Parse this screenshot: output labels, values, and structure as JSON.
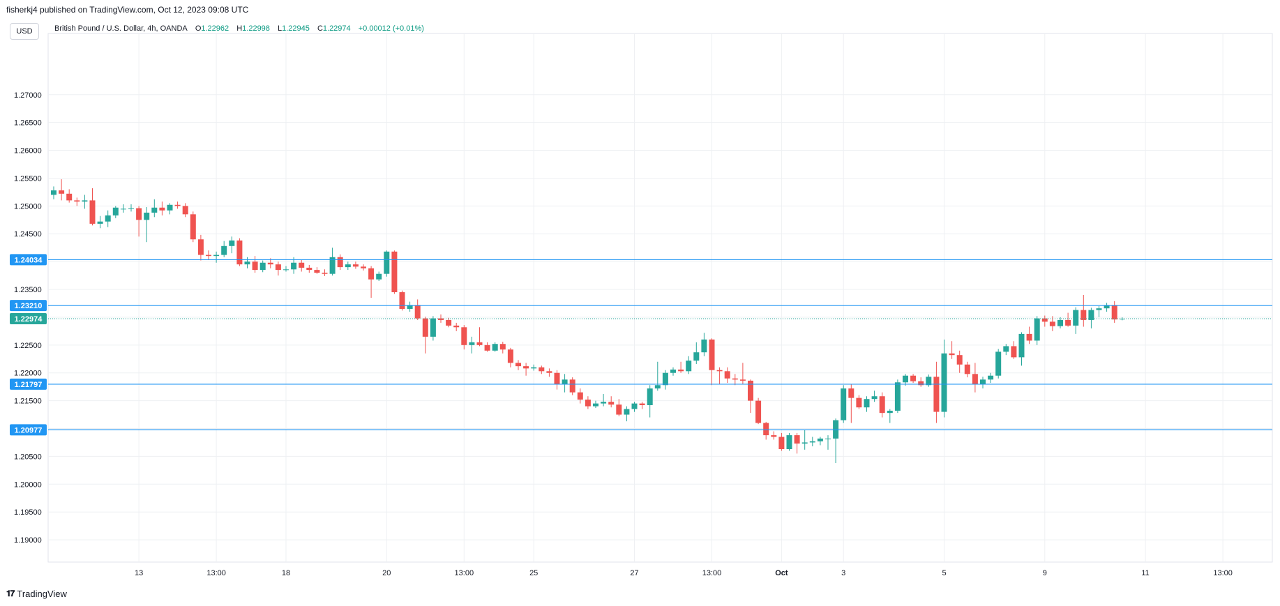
{
  "header": {
    "published_by": "fisherkj4 published on TradingView.com, Oct 12, 2023 09:08 UTC",
    "currency_button": "USD"
  },
  "legend": {
    "symbol": "British Pound / U.S. Dollar, 4h, OANDA",
    "open_label": "O",
    "open": "1.22962",
    "high_label": "H",
    "high": "1.22998",
    "low_label": "L",
    "low": "1.22945",
    "close_label": "C",
    "close": "1.22974",
    "change": "+0.00012 (+0.01%)"
  },
  "footer": {
    "brand": "TradingView",
    "logo_glyph": "𝟏𝟕"
  },
  "colors": {
    "up": "#26a69a",
    "down": "#ef5350",
    "hline": "#2196f3",
    "grid": "#eef0f3",
    "axis_text": "#131722",
    "last_price": "#26a69a"
  },
  "chart_data": {
    "type": "candlestick",
    "grid": true,
    "ylim": [
      1.186,
      1.281
    ],
    "y_ticks": [
      "1.27000",
      "1.26500",
      "1.26000",
      "1.25500",
      "1.25000",
      "1.24500",
      "1.24000",
      "1.23500",
      "1.23000",
      "1.22500",
      "1.22000",
      "1.21500",
      "1.21000",
      "1.20500",
      "1.20000",
      "1.19500",
      "1.19000"
    ],
    "x_ticks": [
      {
        "label": "13",
        "bar": 11
      },
      {
        "label": "13:00",
        "bar": 21
      },
      {
        "label": "18",
        "bar": 30
      },
      {
        "label": "20",
        "bar": 43
      },
      {
        "label": "13:00",
        "bar": 53
      },
      {
        "label": "25",
        "bar": 62
      },
      {
        "label": "27",
        "bar": 75
      },
      {
        "label": "13:00",
        "bar": 85
      },
      {
        "label": "Oct",
        "bar": 94
      },
      {
        "label": "3",
        "bar": 102
      },
      {
        "label": "5",
        "bar": 115
      },
      {
        "label": "9",
        "bar": 128
      },
      {
        "label": "11",
        "bar": 141
      },
      {
        "label": "13:00",
        "bar": 151
      }
    ],
    "horizontal_lines": [
      {
        "label": "1.24034",
        "value": 1.24034
      },
      {
        "label": "1.23210",
        "value": 1.2321
      },
      {
        "label": "1.21797",
        "value": 1.21797
      },
      {
        "label": "1.20977",
        "value": 1.20977
      }
    ],
    "last_price": {
      "label": "1.22974",
      "value": 1.22974
    },
    "candles": [
      [
        1.252,
        1.2535,
        1.2512,
        1.2528
      ],
      [
        1.2528,
        1.2548,
        1.251,
        1.2522
      ],
      [
        1.2522,
        1.253,
        1.2506,
        1.251
      ],
      [
        1.251,
        1.2515,
        1.25,
        1.2508
      ],
      [
        1.2508,
        1.252,
        1.2495,
        1.251
      ],
      [
        1.251,
        1.2532,
        1.2465,
        1.2468
      ],
      [
        1.2468,
        1.2482,
        1.246,
        1.2472
      ],
      [
        1.2472,
        1.2492,
        1.2462,
        1.2483
      ],
      [
        1.2483,
        1.25,
        1.2478,
        1.2497
      ],
      [
        1.2495,
        1.2503,
        1.2488,
        1.2495
      ],
      [
        1.2495,
        1.2503,
        1.249,
        1.2496
      ],
      [
        1.2496,
        1.25,
        1.2445,
        1.2475
      ],
      [
        1.2475,
        1.2498,
        1.2435,
        1.2488
      ],
      [
        1.2488,
        1.2512,
        1.248,
        1.2497
      ],
      [
        1.2497,
        1.2508,
        1.2483,
        1.2492
      ],
      [
        1.2492,
        1.2505,
        1.2485,
        1.2502
      ],
      [
        1.2502,
        1.2508,
        1.2495,
        1.25
      ],
      [
        1.25,
        1.2505,
        1.248,
        1.2485
      ],
      [
        1.2485,
        1.249,
        1.2435,
        1.244
      ],
      [
        1.244,
        1.2448,
        1.2402,
        1.2412
      ],
      [
        1.2412,
        1.242,
        1.2403,
        1.241
      ],
      [
        1.241,
        1.2418,
        1.2398,
        1.2412
      ],
      [
        1.2412,
        1.2437,
        1.2408,
        1.2428
      ],
      [
        1.2428,
        1.2445,
        1.2415,
        1.2438
      ],
      [
        1.2438,
        1.2442,
        1.2392,
        1.2395
      ],
      [
        1.2395,
        1.2408,
        1.2388,
        1.24
      ],
      [
        1.24,
        1.241,
        1.238,
        1.2385
      ],
      [
        1.2385,
        1.2402,
        1.2381,
        1.2398
      ],
      [
        1.2398,
        1.2406,
        1.2388,
        1.2395
      ],
      [
        1.2395,
        1.24,
        1.2375,
        1.2385
      ],
      [
        1.2385,
        1.2392,
        1.2382,
        1.2386
      ],
      [
        1.2386,
        1.2408,
        1.2378,
        1.2398
      ],
      [
        1.2398,
        1.2404,
        1.2382,
        1.2389
      ],
      [
        1.2389,
        1.2394,
        1.238,
        1.2385
      ],
      [
        1.2385,
        1.239,
        1.2378,
        1.238
      ],
      [
        1.238,
        1.2386,
        1.2374,
        1.2378
      ],
      [
        1.2378,
        1.2425,
        1.2375,
        1.2408
      ],
      [
        1.2408,
        1.2413,
        1.2385,
        1.239
      ],
      [
        1.239,
        1.24,
        1.2385,
        1.2395
      ],
      [
        1.2395,
        1.24,
        1.2387,
        1.2391
      ],
      [
        1.2391,
        1.2395,
        1.2384,
        1.2388
      ],
      [
        1.2388,
        1.2392,
        1.2335,
        1.2368
      ],
      [
        1.2368,
        1.2382,
        1.2365,
        1.2378
      ],
      [
        1.2378,
        1.242,
        1.2373,
        1.2418
      ],
      [
        1.2418,
        1.242,
        1.2342,
        1.2345
      ],
      [
        1.2345,
        1.2348,
        1.2312,
        1.2315
      ],
      [
        1.2315,
        1.2328,
        1.231,
        1.2322
      ],
      [
        1.2322,
        1.2332,
        1.2295,
        1.2298
      ],
      [
        1.2298,
        1.2301,
        1.2235,
        1.2265
      ],
      [
        1.2265,
        1.2302,
        1.2258,
        1.2298
      ],
      [
        1.2298,
        1.2305,
        1.229,
        1.2295
      ],
      [
        1.2295,
        1.2299,
        1.2282,
        1.2285
      ],
      [
        1.2285,
        1.229,
        1.2275,
        1.2282
      ],
      [
        1.2282,
        1.2286,
        1.2242,
        1.225
      ],
      [
        1.225,
        1.2265,
        1.2235,
        1.2255
      ],
      [
        1.2255,
        1.2282,
        1.2248,
        1.225
      ],
      [
        1.225,
        1.2255,
        1.2238,
        1.224
      ],
      [
        1.224,
        1.2255,
        1.2238,
        1.2252
      ],
      [
        1.2252,
        1.2256,
        1.2235,
        1.2242
      ],
      [
        1.2242,
        1.2245,
        1.221,
        1.2218
      ],
      [
        1.2218,
        1.2223,
        1.2205,
        1.2212
      ],
      [
        1.2212,
        1.2218,
        1.2195,
        1.2208
      ],
      [
        1.2208,
        1.2215,
        1.2204,
        1.221
      ],
      [
        1.221,
        1.2213,
        1.2198,
        1.2203
      ],
      [
        1.2203,
        1.2208,
        1.2193,
        1.22
      ],
      [
        1.22,
        1.2205,
        1.217,
        1.218
      ],
      [
        1.218,
        1.2198,
        1.2165,
        1.2188
      ],
      [
        1.2188,
        1.2192,
        1.216,
        1.2165
      ],
      [
        1.2165,
        1.2172,
        1.2145,
        1.2152
      ],
      [
        1.2152,
        1.2158,
        1.2135,
        1.214
      ],
      [
        1.214,
        1.215,
        1.2137,
        1.2145
      ],
      [
        1.2145,
        1.2162,
        1.214,
        1.2148
      ],
      [
        1.2148,
        1.2158,
        1.2138,
        1.2143
      ],
      [
        1.2143,
        1.2153,
        1.2122,
        1.2125
      ],
      [
        1.2125,
        1.214,
        1.2113,
        1.2135
      ],
      [
        1.2135,
        1.2148,
        1.213,
        1.2145
      ],
      [
        1.2145,
        1.2148,
        1.2135,
        1.2142
      ],
      [
        1.2142,
        1.2178,
        1.212,
        1.2172
      ],
      [
        1.2172,
        1.222,
        1.2168,
        1.2178
      ],
      [
        1.2178,
        1.2205,
        1.217,
        1.22
      ],
      [
        1.22,
        1.221,
        1.2195,
        1.2206
      ],
      [
        1.2206,
        1.222,
        1.22,
        1.2203
      ],
      [
        1.2203,
        1.223,
        1.2198,
        1.2222
      ],
      [
        1.2222,
        1.2255,
        1.2216,
        1.2237
      ],
      [
        1.2237,
        1.2272,
        1.223,
        1.226
      ],
      [
        1.226,
        1.2262,
        1.2178,
        1.2205
      ],
      [
        1.2205,
        1.221,
        1.218,
        1.2203
      ],
      [
        1.2203,
        1.221,
        1.2182,
        1.219
      ],
      [
        1.219,
        1.2198,
        1.2178,
        1.2188
      ],
      [
        1.2188,
        1.2218,
        1.218,
        1.2186
      ],
      [
        1.2186,
        1.2188,
        1.2128,
        1.215
      ],
      [
        1.215,
        1.2155,
        1.2108,
        1.211
      ],
      [
        1.211,
        1.2112,
        1.208,
        1.2088
      ],
      [
        1.2088,
        1.2095,
        1.208,
        1.2085
      ],
      [
        1.2085,
        1.2092,
        1.206,
        1.2063
      ],
      [
        1.2063,
        1.2092,
        1.206,
        1.2088
      ],
      [
        1.2088,
        1.2092,
        1.2055,
        1.2073
      ],
      [
        1.2073,
        1.2098,
        1.2062,
        1.2075
      ],
      [
        1.2075,
        1.2085,
        1.2068,
        1.2077
      ],
      [
        1.2077,
        1.2085,
        1.207,
        1.2082
      ],
      [
        1.2082,
        1.2088,
        1.2062,
        1.2082
      ],
      [
        1.2082,
        1.2118,
        1.2038,
        1.2115
      ],
      [
        1.2115,
        1.2178,
        1.211,
        1.2172
      ],
      [
        1.2172,
        1.218,
        1.211,
        1.2155
      ],
      [
        1.2155,
        1.216,
        1.2135,
        1.2138
      ],
      [
        1.2138,
        1.2158,
        1.213,
        1.2153
      ],
      [
        1.2153,
        1.2168,
        1.2148,
        1.2158
      ],
      [
        1.2158,
        1.2165,
        1.212,
        1.2128
      ],
      [
        1.2128,
        1.2135,
        1.211,
        1.2132
      ],
      [
        1.2132,
        1.2188,
        1.2128,
        1.2183
      ],
      [
        1.2183,
        1.2198,
        1.2177,
        1.2195
      ],
      [
        1.2195,
        1.2198,
        1.2182,
        1.2185
      ],
      [
        1.2185,
        1.2192,
        1.2175,
        1.2178
      ],
      [
        1.2178,
        1.2197,
        1.2175,
        1.2193
      ],
      [
        1.2193,
        1.222,
        1.211,
        1.213
      ],
      [
        1.213,
        1.226,
        1.212,
        1.2235
      ],
      [
        1.2235,
        1.2257,
        1.2225,
        1.2232
      ],
      [
        1.2232,
        1.224,
        1.22,
        1.2215
      ],
      [
        1.2215,
        1.222,
        1.2192,
        1.2198
      ],
      [
        1.2198,
        1.2218,
        1.2165,
        1.218
      ],
      [
        1.218,
        1.2193,
        1.2172,
        1.2188
      ],
      [
        1.2188,
        1.22,
        1.2182,
        1.2195
      ],
      [
        1.2195,
        1.2243,
        1.219,
        1.2238
      ],
      [
        1.2238,
        1.2252,
        1.2232,
        1.2248
      ],
      [
        1.2248,
        1.2257,
        1.2225,
        1.2228
      ],
      [
        1.2228,
        1.2273,
        1.2213,
        1.227
      ],
      [
        1.227,
        1.2283,
        1.2252,
        1.2258
      ],
      [
        1.2258,
        1.2302,
        1.225,
        1.2298
      ],
      [
        1.2298,
        1.2303,
        1.2283,
        1.2292
      ],
      [
        1.2292,
        1.2302,
        1.2275,
        1.2284
      ],
      [
        1.2284,
        1.23,
        1.228,
        1.2295
      ],
      [
        1.2295,
        1.2308,
        1.2283,
        1.2285
      ],
      [
        1.2285,
        1.2318,
        1.227,
        1.2313
      ],
      [
        1.2313,
        1.234,
        1.2283,
        1.2295
      ],
      [
        1.2295,
        1.2317,
        1.228,
        1.2313
      ],
      [
        1.2313,
        1.232,
        1.23,
        1.2316
      ],
      [
        1.2316,
        1.2326,
        1.231,
        1.2322
      ],
      [
        1.2322,
        1.2329,
        1.229,
        1.2296
      ],
      [
        1.22962,
        1.22998,
        1.22945,
        1.22974
      ]
    ]
  }
}
